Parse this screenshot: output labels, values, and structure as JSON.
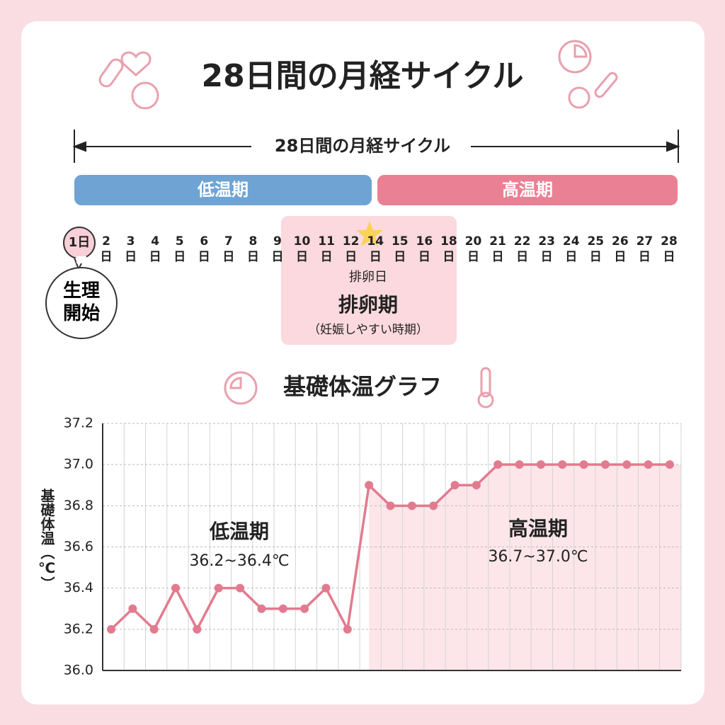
{
  "header": {
    "title": "28日間の月経サイクル"
  },
  "cycle": {
    "label": "28日間の月経サイクル",
    "phases": [
      "低温期",
      "高温期"
    ],
    "days": [
      "1",
      "2",
      "3",
      "4",
      "5",
      "6",
      "7",
      "8",
      "9",
      "10",
      "11",
      "12",
      "14",
      "15",
      "16",
      "18",
      "20",
      "21",
      "22",
      "23",
      "24",
      "25",
      "26",
      "27",
      "28"
    ],
    "day_unit": "日",
    "period_start": "生理開始",
    "ovulation_day": "排卵日",
    "ovulation_period": "排卵期",
    "ovulation_note": "（妊娠しやすい時期）"
  },
  "chart_data": {
    "type": "line",
    "title": "基礎体温グラフ",
    "y_label": "基礎体温（℃）",
    "categories": [
      null,
      null,
      null,
      null,
      null,
      null,
      null,
      null,
      null,
      null,
      null,
      null,
      null,
      null,
      null,
      null,
      null,
      null,
      null,
      null,
      null,
      null,
      null,
      null,
      null,
      null,
      null
    ],
    "values": [
      36.2,
      36.3,
      36.2,
      36.4,
      36.2,
      36.4,
      36.4,
      36.3,
      36.3,
      36.3,
      36.4,
      36.2,
      36.9,
      36.8,
      36.8,
      36.8,
      36.9,
      36.9,
      37.0,
      37.0,
      37.0,
      37.0,
      37.0,
      37.0,
      37.0,
      37.0,
      37.0
    ],
    "color": "#e27b8f",
    "ylim": [
      36.0,
      37.2
    ],
    "yticks": [
      {
        "value": 36.0,
        "label": "36.0"
      },
      36.2,
      36.4,
      36.6,
      36.8,
      {
        "value": 37.0,
        "label": "37.0"
      },
      37.2
    ],
    "grid": true,
    "annotations": [
      "低温期",
      "36.2~36.4℃",
      "高温期",
      "36.7~37.0℃"
    ]
  }
}
